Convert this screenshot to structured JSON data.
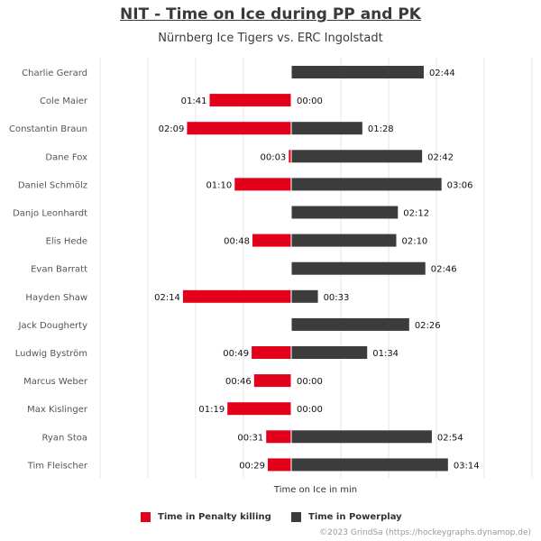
{
  "title": "NIT - Time on Ice during PP and PK",
  "subtitle": "Nürnberg Ice Tigers vs. ERC Ingolstadt",
  "credit": "©2023 GrindSa (https://hockeygraphs.dynamop.de)",
  "chart_data": {
    "type": "bar",
    "orientation": "horizontal",
    "xlabel": "Time on Ice in min",
    "grid": true,
    "legend_placement": "bottom",
    "categories": [
      "Charlie Gerard",
      "Cole Maier",
      "Constantin Braun",
      "Dane Fox",
      "Daniel Schmölz",
      "Danjo Leonhardt",
      "Elis Hede",
      "Evan Barratt",
      "Hayden Shaw",
      "Jack Dougherty",
      "Ludwig Byström",
      "Marcus Weber",
      "Max Kislinger",
      "Ryan Stoa",
      "Tim Fleischer"
    ],
    "series": [
      {
        "name": "Time in Penalty killing",
        "color": "#e2001a",
        "direction": "left",
        "values": [
          null,
          "01:41",
          "02:09",
          "00:03",
          "01:10",
          null,
          "00:48",
          null,
          "02:14",
          null,
          "00:49",
          "00:46",
          "01:19",
          "00:31",
          "00:29"
        ]
      },
      {
        "name": "Time in Powerplay",
        "color": "#3c3c3c",
        "direction": "right",
        "values": [
          "02:44",
          "00:00",
          "01:28",
          "02:42",
          "03:06",
          "02:12",
          "02:10",
          "02:46",
          "00:33",
          "02:26",
          "01:34",
          "00:00",
          "00:00",
          "02:54",
          "03:14"
        ]
      }
    ]
  }
}
